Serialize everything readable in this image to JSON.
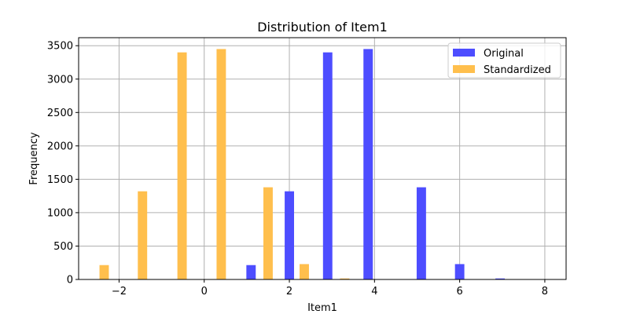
{
  "chart_data": {
    "type": "bar",
    "title": "Distribution of Item1",
    "xlabel": "Item1",
    "ylabel": "Frequency",
    "xlim": [
      -2.95,
      8.5
    ],
    "ylim": [
      0,
      3620
    ],
    "xticks": [
      -2,
      0,
      2,
      4,
      6,
      8
    ],
    "xtick_labels": [
      "−2",
      "0",
      "2",
      "4",
      "6",
      "8"
    ],
    "yticks": [
      0,
      500,
      1000,
      1500,
      2000,
      2500,
      3000,
      3500
    ],
    "ytick_labels": [
      "0",
      "500",
      "1000",
      "1500",
      "2000",
      "2500",
      "3000",
      "3500"
    ],
    "grid": true,
    "legend_position": "top-right",
    "bar_width": 0.22,
    "series": [
      {
        "name": "Original",
        "color": "#4d4dff",
        "x": [
          1.1,
          2.0,
          2.9,
          3.85,
          5.1,
          6.0,
          6.95
        ],
        "values": [
          215,
          1320,
          3400,
          3450,
          1380,
          230,
          15
        ]
      },
      {
        "name": "Standardized",
        "color": "#ffbf4d",
        "x": [
          -2.35,
          -1.45,
          -0.52,
          0.4,
          1.5,
          2.35,
          3.3
        ],
        "values": [
          215,
          1320,
          3400,
          3450,
          1380,
          230,
          15
        ]
      }
    ]
  }
}
